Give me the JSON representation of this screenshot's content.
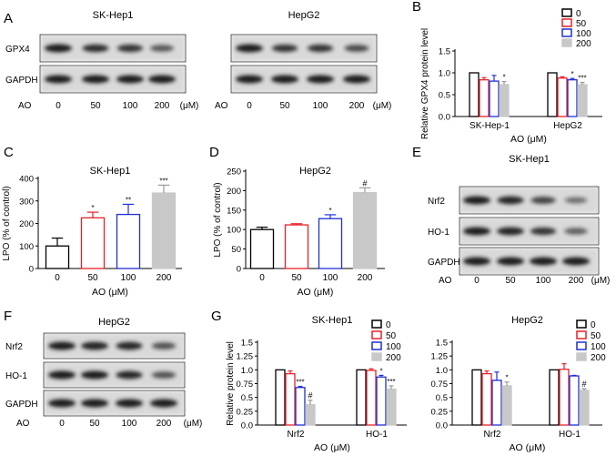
{
  "colors": {
    "c0": "#000000",
    "c50": "#e8202a",
    "c100": "#1f2fd6",
    "c200": "#c8c8c8",
    "sig_red": "#e8202a",
    "sig_blue": "#1f2fd6"
  },
  "dose_legend": [
    "0",
    "50",
    "100",
    "200"
  ],
  "axis_unit": "AO (μM)",
  "blots": [
    {
      "id": "A1",
      "panel": "A",
      "title": "SK-Hep1",
      "rows": [
        {
          "label": "GPX4",
          "intensity": [
            1.0,
            0.85,
            0.8,
            0.55
          ]
        },
        {
          "label": "GAPDH",
          "intensity": [
            1.0,
            1.0,
            1.0,
            1.0
          ]
        }
      ],
      "ao_label": "AO",
      "doses": [
        "0",
        "50",
        "100",
        "200"
      ],
      "unit": "(μM)"
    },
    {
      "id": "A2",
      "panel": "",
      "title": "HepG2",
      "rows": [
        {
          "label": "",
          "intensity": [
            1.0,
            0.8,
            0.8,
            0.65
          ]
        },
        {
          "label": "",
          "intensity": [
            1.0,
            1.0,
            1.0,
            1.0
          ]
        }
      ],
      "ao_label": "AO",
      "doses": [
        "0",
        "50",
        "100",
        "200"
      ],
      "unit": "(μM)"
    },
    {
      "id": "E",
      "panel": "E",
      "title": "SK-Hep1",
      "rows": [
        {
          "label": "Nrf2",
          "intensity": [
            1.0,
            0.9,
            0.7,
            0.4
          ]
        },
        {
          "label": "HO-1",
          "intensity": [
            1.0,
            0.95,
            0.8,
            0.5
          ]
        },
        {
          "label": "GAPDH",
          "intensity": [
            1.0,
            1.0,
            1.0,
            1.0
          ]
        }
      ],
      "ao_label": "AO",
      "doses": [
        "0",
        "50",
        "100",
        "200"
      ],
      "unit": "(μM)"
    },
    {
      "id": "F",
      "panel": "F",
      "title": "HepG2",
      "rows": [
        {
          "label": "Nrf2",
          "intensity": [
            1.0,
            0.95,
            0.9,
            0.6
          ]
        },
        {
          "label": "HO-1",
          "intensity": [
            1.0,
            1.0,
            0.9,
            0.6
          ]
        },
        {
          "label": "GAPDH",
          "intensity": [
            1.0,
            1.0,
            1.0,
            1.0
          ]
        }
      ],
      "ao_label": "AO",
      "doses": [
        "0",
        "50",
        "100",
        "200"
      ],
      "unit": "(μM)"
    }
  ],
  "chart_data": [
    {
      "id": "B",
      "panel": "B",
      "type": "bar",
      "title": "",
      "xlabel": "AO (μM)",
      "ylabel": "Relative GPX4 protein level",
      "ylim": [
        0,
        1.5
      ],
      "yticks": [
        "0.0",
        "0.5",
        "1.0",
        "1.5"
      ],
      "groups": [
        "SK-Hep-1",
        "HepG2"
      ],
      "series": [
        {
          "name": "0",
          "values": [
            1.0,
            1.0
          ],
          "errors": [
            0,
            0
          ],
          "sig": [
            "",
            ""
          ]
        },
        {
          "name": "50",
          "values": [
            0.84,
            0.88
          ],
          "errors": [
            0.05,
            0.03
          ],
          "sig": [
            "",
            ""
          ]
        },
        {
          "name": "100",
          "values": [
            0.81,
            0.84
          ],
          "errors": [
            0.13,
            0.03
          ],
          "sig": [
            "",
            "*"
          ]
        },
        {
          "name": "200",
          "values": [
            0.73,
            0.73
          ],
          "errors": [
            0.07,
            0.05
          ],
          "sig": [
            "*",
            "***"
          ]
        }
      ],
      "legend": "top-right"
    },
    {
      "id": "C",
      "panel": "C",
      "type": "bar",
      "title": "SK-Hep1",
      "xlabel": "AO (μM)",
      "ylabel": "LPO (% of control)",
      "ylim": [
        0,
        400
      ],
      "yticks": [
        "0",
        "100",
        "200",
        "300",
        "400"
      ],
      "categories": [
        "0",
        "50",
        "100",
        "200"
      ],
      "values": [
        100,
        225,
        240,
        335
      ],
      "errors": [
        35,
        25,
        45,
        35
      ],
      "sig": [
        "",
        "*",
        "**",
        "***"
      ]
    },
    {
      "id": "D",
      "panel": "D",
      "type": "bar",
      "title": "HepG2",
      "xlabel": "AO (μM)",
      "ylabel": "LPO (% of control)",
      "ylim": [
        0,
        250
      ],
      "yticks": [
        "0",
        "50",
        "100",
        "150",
        "200",
        "250"
      ],
      "categories": [
        "0",
        "50",
        "100",
        "200"
      ],
      "values": [
        100,
        112,
        128,
        195
      ],
      "errors": [
        6,
        3,
        10,
        12
      ],
      "sig": [
        "",
        "",
        "*",
        "#"
      ]
    },
    {
      "id": "G1",
      "panel": "G",
      "type": "bar",
      "title": "SK-Hep1",
      "xlabel": "AO (μM)",
      "ylabel": "Relative protein level",
      "ylim": [
        0,
        1.5
      ],
      "yticks": [
        "0.0",
        "0.25",
        "0.5",
        "0.75",
        "1.0",
        "1.25",
        "1.5"
      ],
      "groups": [
        "Nrf2",
        "HO-1"
      ],
      "series": [
        {
          "name": "0",
          "values": [
            1.0,
            1.0
          ],
          "errors": [
            0,
            0
          ],
          "sig": [
            "",
            ""
          ]
        },
        {
          "name": "50",
          "values": [
            0.93,
            0.99
          ],
          "errors": [
            0.05,
            0.03
          ],
          "sig": [
            "",
            ""
          ]
        },
        {
          "name": "100",
          "values": [
            0.68,
            0.87
          ],
          "errors": [
            0.02,
            0.03
          ],
          "sig": [
            "***",
            "*"
          ]
        },
        {
          "name": "200",
          "values": [
            0.37,
            0.65
          ],
          "errors": [
            0.08,
            0.06
          ],
          "sig": [
            "#",
            "***"
          ]
        }
      ],
      "legend": "top-right"
    },
    {
      "id": "G2",
      "panel": "",
      "type": "bar",
      "title": "HepG2",
      "xlabel": "AO (μM)",
      "ylabel": "",
      "ylim": [
        0,
        1.5
      ],
      "yticks": [
        "0.0",
        "0.25",
        "0.5",
        "0.75",
        "1.0",
        "1.25",
        "1.5"
      ],
      "groups": [
        "Nrf2",
        "HO-1"
      ],
      "series": [
        {
          "name": "0",
          "values": [
            1.0,
            1.0
          ],
          "errors": [
            0,
            0
          ],
          "sig": [
            "",
            ""
          ]
        },
        {
          "name": "50",
          "values": [
            0.93,
            1.01
          ],
          "errors": [
            0.05,
            0.1
          ],
          "sig": [
            "",
            ""
          ]
        },
        {
          "name": "100",
          "values": [
            0.81,
            0.89
          ],
          "errors": [
            0.15,
            0.01
          ],
          "sig": [
            "",
            ""
          ]
        },
        {
          "name": "200",
          "values": [
            0.71,
            0.63
          ],
          "errors": [
            0.07,
            0.03
          ],
          "sig": [
            "*",
            "#"
          ]
        }
      ],
      "legend": "top-right"
    }
  ]
}
